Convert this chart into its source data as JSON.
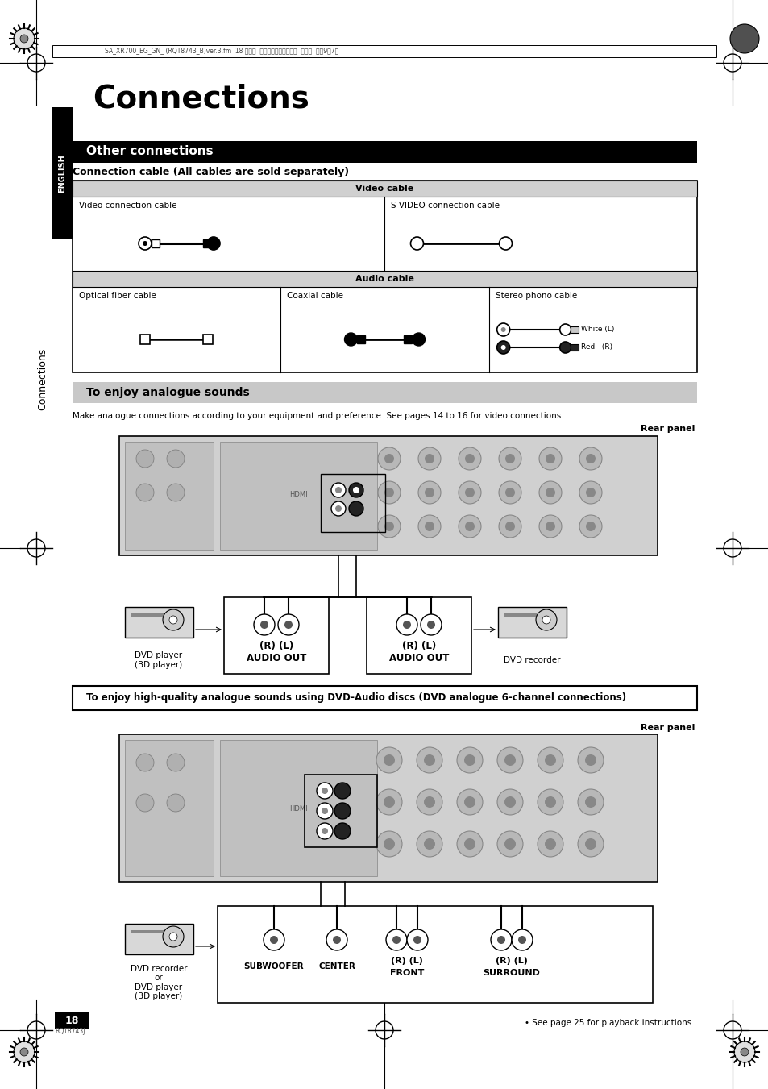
{
  "page_bg": "#ffffff",
  "title": "Connections",
  "section_header": "Other connections",
  "subtitle": "Connection cable (All cables are sold separately)",
  "english_label": "ENGLISH",
  "connections_label": "Connections",
  "video_cable_label": "Video cable",
  "audio_cable_label": "Audio cable",
  "video_conn_cable": "Video connection cable",
  "svideo_conn_cable": "S VIDEO connection cable",
  "optical_fiber_cable": "Optical fiber cable",
  "coaxial_cable": "Coaxial cable",
  "stereo_phono_cable": "Stereo phono cable",
  "white_l": "White (L)",
  "red_r": "Red   (R)",
  "analogue_header": "To enjoy analogue sounds",
  "analogue_desc": "Make analogue connections according to your equipment and preference. See pages 14 to 16 for video connections.",
  "rear_panel_label": "Rear panel",
  "dvd_player_label": "DVD player\n(BD player)",
  "dvd_recorder_label": "DVD recorder",
  "audio_out_rl": "(R) (L)",
  "audio_out": "AUDIO OUT",
  "hq_header": "To enjoy high-quality analogue sounds using DVD-Audio discs (DVD analogue 6-channel connections)",
  "rear_panel_label2": "Rear panel",
  "dvd_recorder_or": "DVD recorder\nor\nDVD player\n(BD player)",
  "subwoofer_label": "SUBWOOFER",
  "center_label": "CENTER",
  "front_label": "(R) (L)\nFRONT",
  "surround_label": "(R) (L)\nSURROUND",
  "see_page": "• See page 25 for playback instructions.",
  "page_number": "18",
  "top_text": "SA_XR700_EG_GN_ (RQT8743_B)ver.3.fm  18 ページ  ２００６年８月３１日  木曜日  午前9晎7分",
  "rqt_text": "RQT8743J"
}
